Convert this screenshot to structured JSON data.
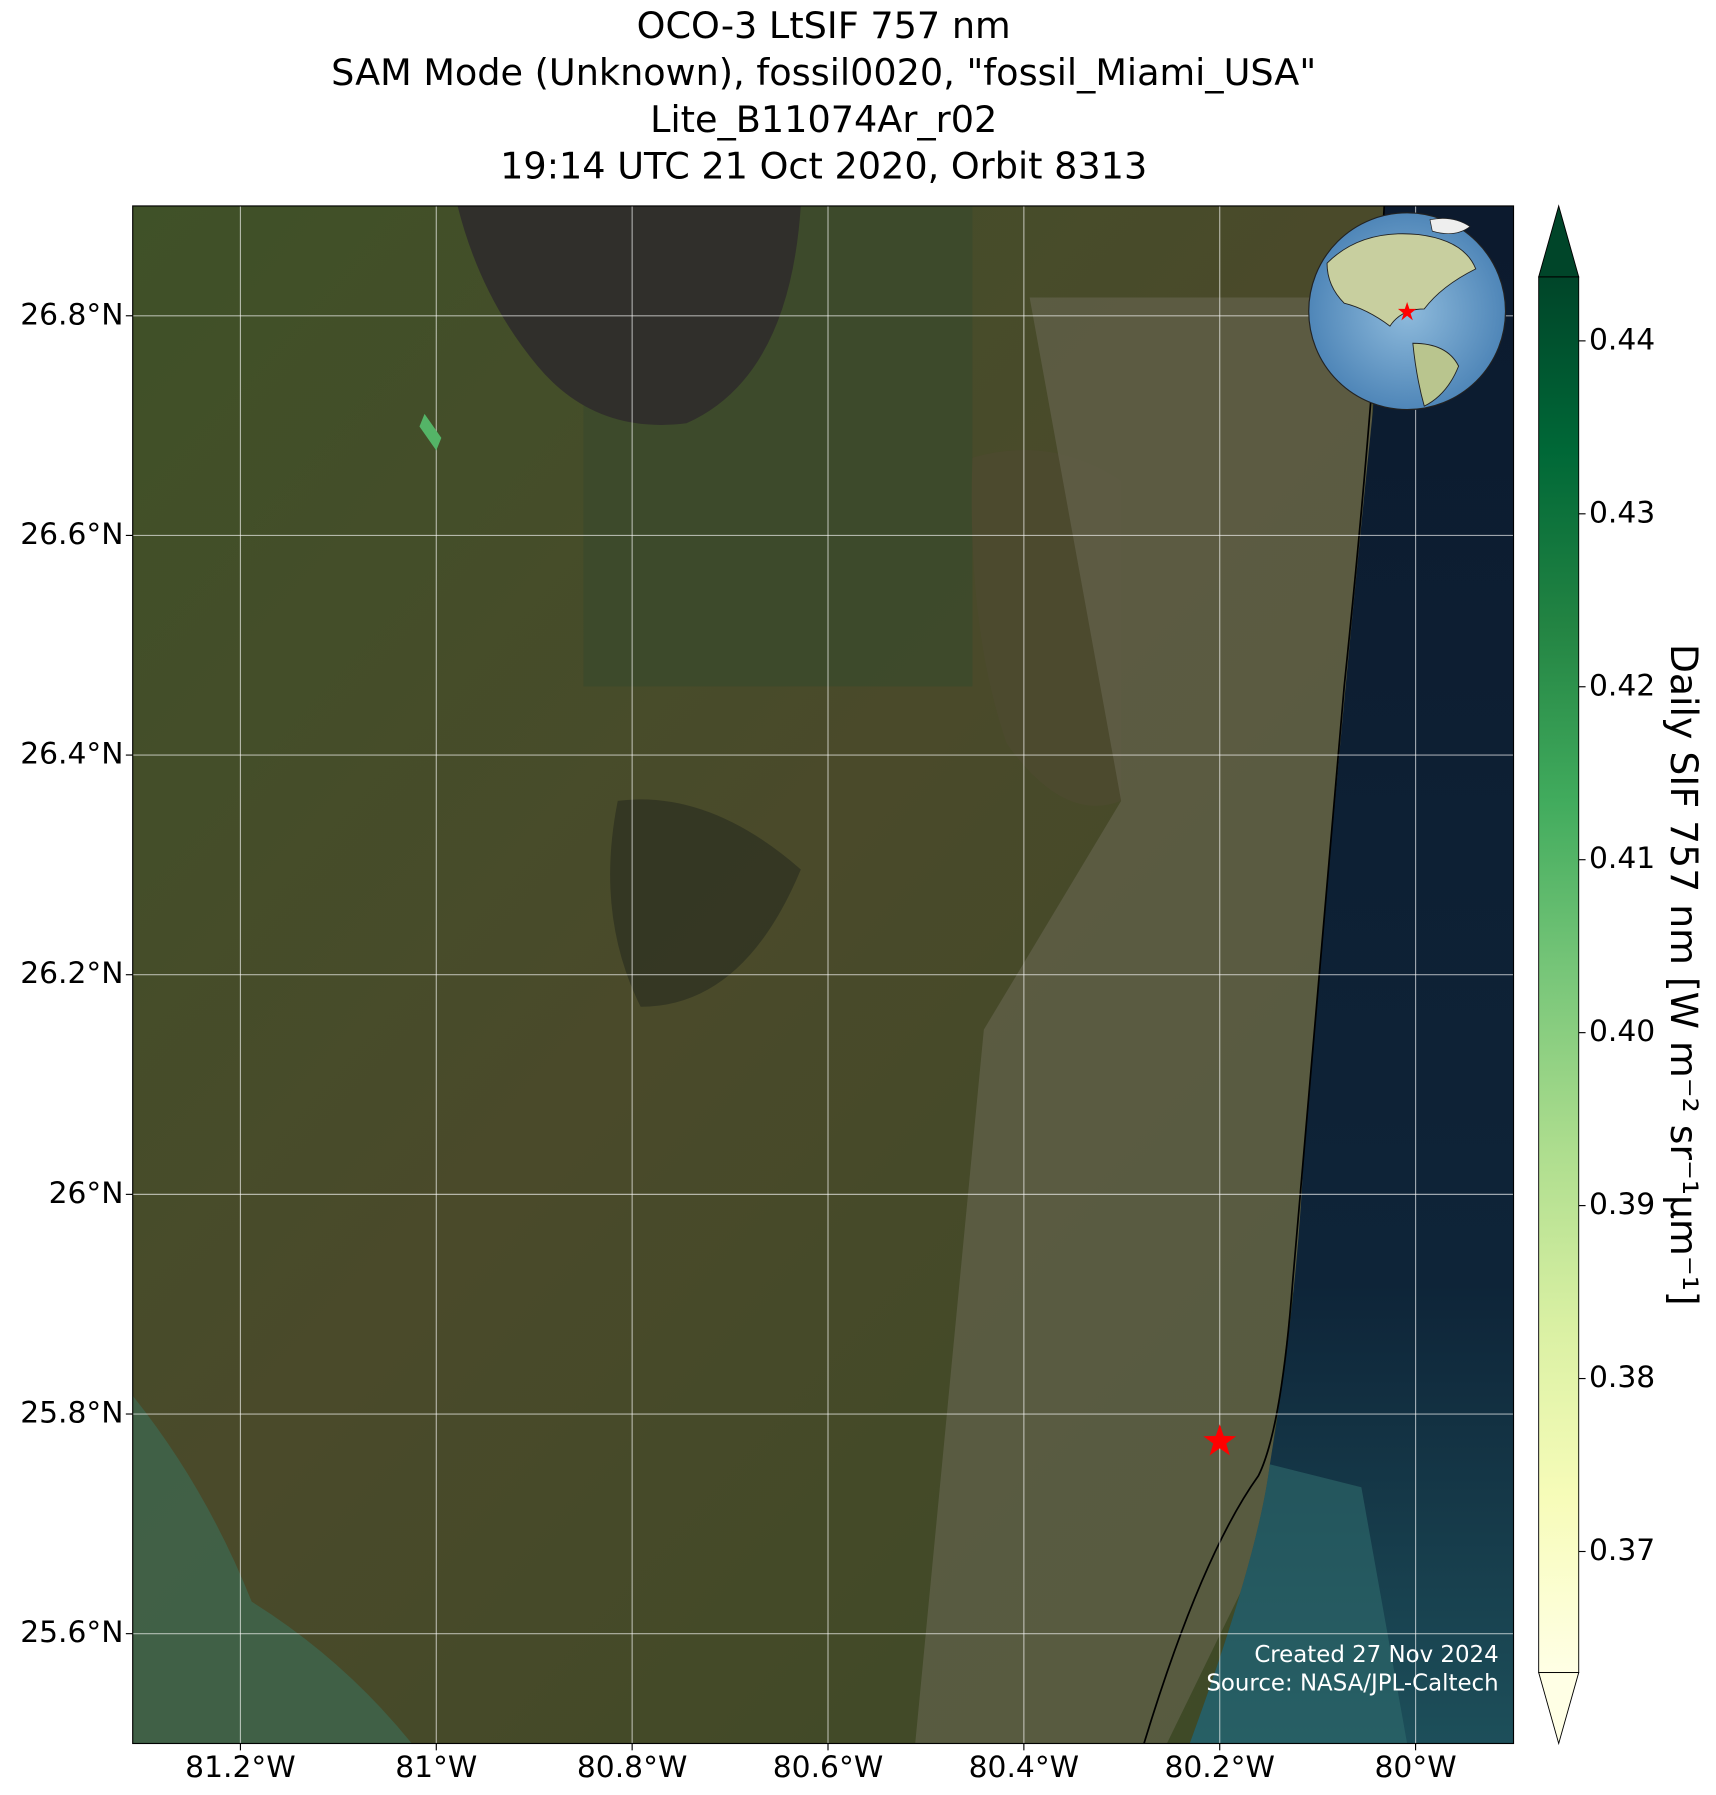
{
  "chart_data": {
    "type": "map",
    "title": [
      "OCO-3 LtSIF 757 nm",
      "SAM Mode (Unknown), fossil0020, \"fossil_Miami_USA\"",
      "Lite_B11074Ar_r02",
      "19:14 UTC 21 Oct 2020, Orbit 8313"
    ],
    "xlim": [
      -81.31,
      -79.9
    ],
    "ylim": [
      25.5,
      26.9
    ],
    "xticks": [
      {
        "value": -81.2,
        "label": "81.2°W"
      },
      {
        "value": -81,
        "label": "81°W"
      },
      {
        "value": -80.8,
        "label": "80.8°W"
      },
      {
        "value": -80.6,
        "label": "80.6°W"
      },
      {
        "value": -80.4,
        "label": "80.4°W"
      },
      {
        "value": -80.2,
        "label": "80.2°W"
      },
      {
        "value": -80,
        "label": "80°W"
      }
    ],
    "yticks": [
      {
        "value": 25.6,
        "label": "25.6°N"
      },
      {
        "value": 25.8,
        "label": "25.8°N"
      },
      {
        "value": 26,
        "label": "26°N"
      },
      {
        "value": 26.2,
        "label": "26.2°N"
      },
      {
        "value": 26.4,
        "label": "26.4°N"
      },
      {
        "value": 26.6,
        "label": "26.6°N"
      },
      {
        "value": 26.8,
        "label": "26.8°N"
      }
    ],
    "grid": true,
    "soundings": {
      "lon": [
        -81.006
      ],
      "lat": [
        26.694
      ],
      "values": [
        0.41
      ]
    },
    "target": {
      "lon": -80.2,
      "lat": 25.775,
      "color": "#ff0000"
    },
    "colorbar": {
      "label": "Daily SIF 757 nm [W m⁻² sr⁻¹μm⁻¹]",
      "vlim": [
        0.363,
        0.4437
      ],
      "ticks": [
        0.37,
        0.38,
        0.39,
        0.4,
        0.41,
        0.42,
        0.43,
        0.44
      ],
      "colors": [
        "#ffffe5",
        "#f7fcb9",
        "#d9f0a3",
        "#addd8e",
        "#78c679",
        "#41ab5d",
        "#238443",
        "#006837",
        "#004529"
      ],
      "extend": "both"
    },
    "credits": [
      "Created 27 Nov 2024",
      "Source: NASA/JPL-Caltech"
    ]
  }
}
